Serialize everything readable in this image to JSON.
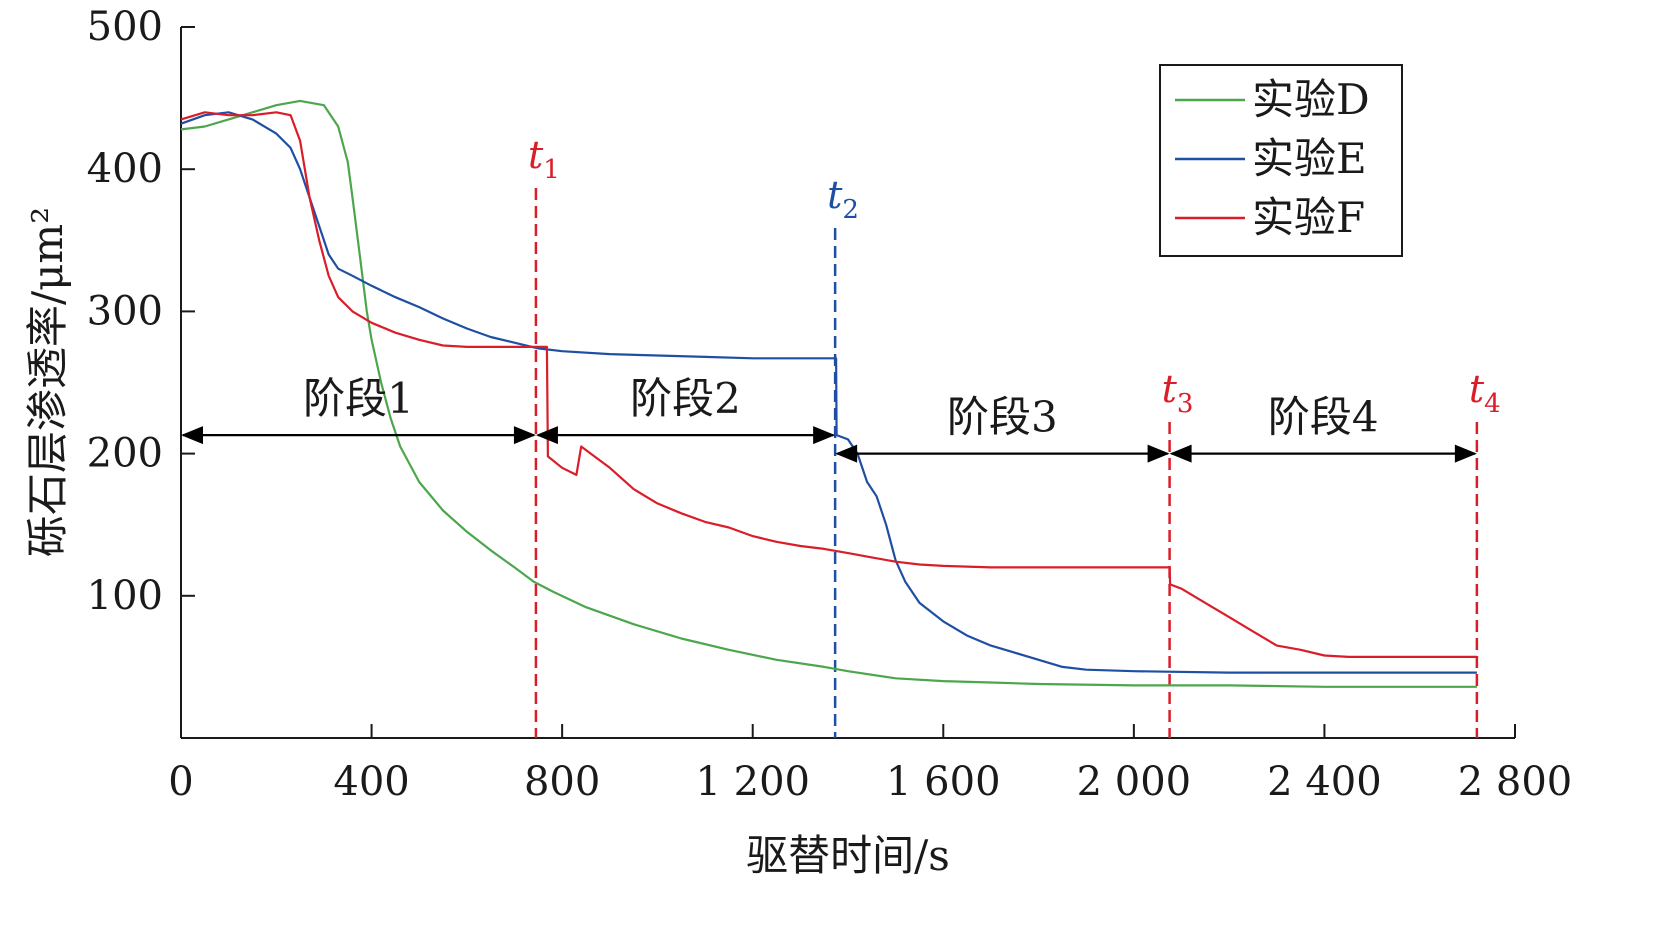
{
  "chart_data": {
    "type": "line",
    "xlabel": "驱替时间/s",
    "ylabel": "砾石层渗透率/μm²",
    "xlim": [
      0,
      2800
    ],
    "ylim": [
      0,
      500
    ],
    "x_ticks": [
      0,
      400,
      800,
      1200,
      1600,
      2000,
      2400,
      2800
    ],
    "x_tick_labels": [
      "0",
      "400",
      "800",
      "1 200",
      "1 600",
      "2 000",
      "2 400",
      "2 800"
    ],
    "y_ticks": [
      100,
      200,
      300,
      400,
      500
    ],
    "y_tick_labels": [
      "100",
      "200",
      "300",
      "400",
      "500"
    ],
    "grid": false,
    "legend_position": "top-right",
    "series": [
      {
        "name": "实验D",
        "color": "#4ca64c",
        "points": [
          [
            0,
            428
          ],
          [
            50,
            430
          ],
          [
            100,
            435
          ],
          [
            150,
            440
          ],
          [
            200,
            445
          ],
          [
            250,
            448
          ],
          [
            300,
            445
          ],
          [
            330,
            430
          ],
          [
            350,
            405
          ],
          [
            360,
            380
          ],
          [
            375,
            340
          ],
          [
            390,
            300
          ],
          [
            400,
            280
          ],
          [
            420,
            250
          ],
          [
            440,
            225
          ],
          [
            460,
            205
          ],
          [
            500,
            180
          ],
          [
            550,
            160
          ],
          [
            600,
            145
          ],
          [
            650,
            132
          ],
          [
            700,
            120
          ],
          [
            740,
            110
          ],
          [
            780,
            103
          ],
          [
            850,
            92
          ],
          [
            950,
            80
          ],
          [
            1050,
            70
          ],
          [
            1150,
            62
          ],
          [
            1250,
            55
          ],
          [
            1350,
            50
          ],
          [
            1400,
            47
          ],
          [
            1500,
            42
          ],
          [
            1600,
            40
          ],
          [
            1700,
            39
          ],
          [
            1800,
            38
          ],
          [
            2000,
            37
          ],
          [
            2200,
            37
          ],
          [
            2400,
            36
          ],
          [
            2600,
            36
          ],
          [
            2720,
            36
          ]
        ]
      },
      {
        "name": "实验E",
        "color": "#1f4fa3",
        "points": [
          [
            0,
            432
          ],
          [
            50,
            438
          ],
          [
            100,
            440
          ],
          [
            150,
            435
          ],
          [
            200,
            425
          ],
          [
            230,
            415
          ],
          [
            250,
            400
          ],
          [
            270,
            380
          ],
          [
            290,
            360
          ],
          [
            310,
            340
          ],
          [
            330,
            330
          ],
          [
            360,
            325
          ],
          [
            400,
            318
          ],
          [
            450,
            310
          ],
          [
            500,
            303
          ],
          [
            550,
            295
          ],
          [
            600,
            288
          ],
          [
            650,
            282
          ],
          [
            700,
            278
          ],
          [
            750,
            274
          ],
          [
            800,
            272
          ],
          [
            900,
            270
          ],
          [
            1000,
            269
          ],
          [
            1100,
            268
          ],
          [
            1200,
            267
          ],
          [
            1300,
            267
          ],
          [
            1375,
            267
          ],
          [
            1376,
            213
          ],
          [
            1400,
            210
          ],
          [
            1420,
            200
          ],
          [
            1440,
            180
          ],
          [
            1460,
            170
          ],
          [
            1480,
            150
          ],
          [
            1500,
            125
          ],
          [
            1520,
            110
          ],
          [
            1550,
            95
          ],
          [
            1600,
            82
          ],
          [
            1650,
            72
          ],
          [
            1700,
            65
          ],
          [
            1750,
            60
          ],
          [
            1800,
            55
          ],
          [
            1850,
            50
          ],
          [
            1900,
            48
          ],
          [
            2000,
            47
          ],
          [
            2200,
            46
          ],
          [
            2400,
            46
          ],
          [
            2600,
            46
          ],
          [
            2720,
            46
          ]
        ]
      },
      {
        "name": "实验F",
        "color": "#d91e2a",
        "points": [
          [
            0,
            435
          ],
          [
            50,
            440
          ],
          [
            100,
            438
          ],
          [
            150,
            438
          ],
          [
            200,
            440
          ],
          [
            230,
            438
          ],
          [
            250,
            420
          ],
          [
            270,
            380
          ],
          [
            290,
            350
          ],
          [
            310,
            325
          ],
          [
            330,
            310
          ],
          [
            360,
            300
          ],
          [
            400,
            292
          ],
          [
            450,
            285
          ],
          [
            500,
            280
          ],
          [
            550,
            276
          ],
          [
            600,
            275
          ],
          [
            650,
            275
          ],
          [
            700,
            275
          ],
          [
            740,
            275
          ],
          [
            768,
            275
          ],
          [
            770,
            198
          ],
          [
            800,
            190
          ],
          [
            830,
            185
          ],
          [
            840,
            205
          ],
          [
            860,
            200
          ],
          [
            900,
            190
          ],
          [
            950,
            175
          ],
          [
            1000,
            165
          ],
          [
            1050,
            158
          ],
          [
            1100,
            152
          ],
          [
            1150,
            148
          ],
          [
            1200,
            142
          ],
          [
            1250,
            138
          ],
          [
            1300,
            135
          ],
          [
            1350,
            133
          ],
          [
            1400,
            130
          ],
          [
            1450,
            127
          ],
          [
            1500,
            124
          ],
          [
            1550,
            122
          ],
          [
            1600,
            121
          ],
          [
            1700,
            120
          ],
          [
            1800,
            120
          ],
          [
            1900,
            120
          ],
          [
            2000,
            120
          ],
          [
            2075,
            120
          ],
          [
            2076,
            108
          ],
          [
            2100,
            105
          ],
          [
            2150,
            95
          ],
          [
            2200,
            85
          ],
          [
            2250,
            75
          ],
          [
            2300,
            65
          ],
          [
            2350,
            62
          ],
          [
            2400,
            58
          ],
          [
            2450,
            57
          ],
          [
            2500,
            57
          ],
          [
            2600,
            57
          ],
          [
            2720,
            57
          ]
        ]
      }
    ],
    "vertical_markers": [
      {
        "label": "t",
        "sub": "1",
        "x": 745,
        "color": "#d91e2a"
      },
      {
        "label": "t",
        "sub": "2",
        "x": 1373,
        "color": "#1f4fa3"
      },
      {
        "label": "t",
        "sub": "3",
        "x": 2075,
        "color": "#d91e2a"
      },
      {
        "label": "t",
        "sub": "4",
        "x": 2720,
        "color": "#d91e2a"
      }
    ],
    "phases": [
      {
        "label": "阶段1",
        "x0": 0,
        "x1": 745,
        "y": 213
      },
      {
        "label": "阶段2",
        "x0": 745,
        "x1": 1373,
        "y": 213
      },
      {
        "label": "阶段3",
        "x0": 1373,
        "x1": 2075,
        "y": 200
      },
      {
        "label": "阶段4",
        "x0": 2075,
        "x1": 2720,
        "y": 200
      }
    ]
  }
}
